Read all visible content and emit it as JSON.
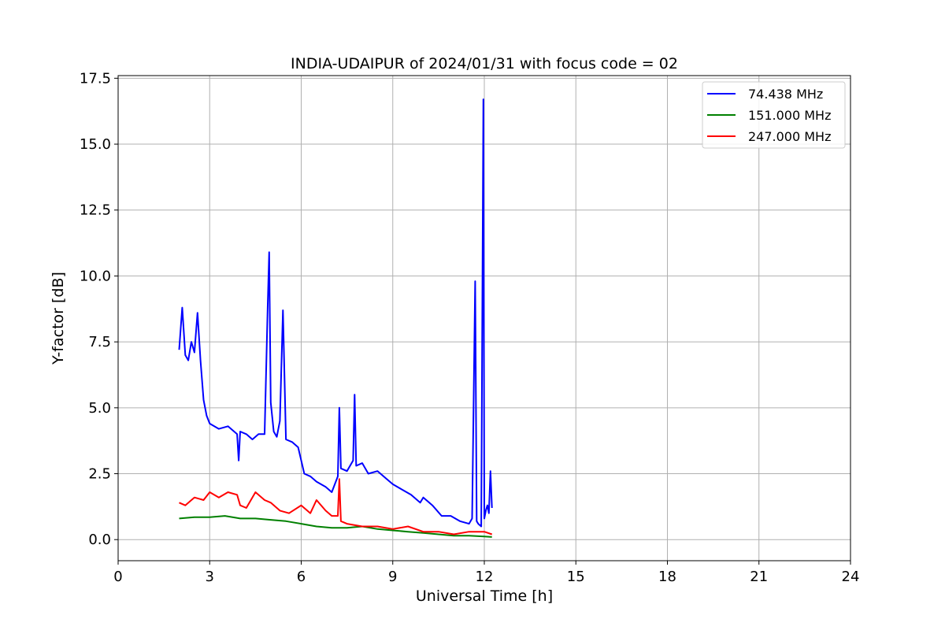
{
  "chart_data": {
    "type": "line",
    "title": "INDIA-UDAIPUR of 2024/01/31 with focus code = 02",
    "xlabel": "Universal Time [h]",
    "ylabel": "Y-factor [dB]",
    "xlim": [
      0,
      24
    ],
    "ylim": [
      -0.8,
      17.6
    ],
    "xticks": [
      0,
      3,
      6,
      9,
      12,
      15,
      18,
      21,
      24
    ],
    "yticks": [
      0.0,
      2.5,
      5.0,
      7.5,
      10.0,
      12.5,
      15.0,
      17.5
    ],
    "xtick_labels": [
      "0",
      "3",
      "6",
      "9",
      "12",
      "15",
      "18",
      "21",
      "24"
    ],
    "ytick_labels": [
      "0.0",
      "2.5",
      "5.0",
      "7.5",
      "10.0",
      "12.5",
      "15.0",
      "17.5"
    ],
    "grid": true,
    "legend_position": "top-right",
    "series": [
      {
        "name": " 74.438 MHz",
        "color": "#0000ff",
        "x": [
          2.0,
          2.1,
          2.2,
          2.3,
          2.4,
          2.5,
          2.6,
          2.7,
          2.8,
          2.9,
          3.0,
          3.3,
          3.6,
          3.9,
          3.95,
          4.0,
          4.2,
          4.4,
          4.6,
          4.8,
          4.9,
          4.95,
          5.0,
          5.1,
          5.2,
          5.3,
          5.4,
          5.5,
          5.7,
          5.9,
          6.1,
          6.3,
          6.5,
          6.8,
          7.0,
          7.2,
          7.25,
          7.3,
          7.5,
          7.7,
          7.75,
          7.8,
          8.0,
          8.2,
          8.5,
          8.8,
          9.0,
          9.3,
          9.6,
          9.9,
          10.0,
          10.3,
          10.6,
          10.9,
          11.2,
          11.5,
          11.6,
          11.7,
          11.75,
          11.8,
          11.9,
          11.97,
          12.0,
          12.05,
          12.1,
          12.15,
          12.2,
          12.25
        ],
        "y": [
          7.2,
          8.8,
          7.0,
          6.8,
          7.5,
          7.1,
          8.6,
          6.8,
          5.3,
          4.7,
          4.4,
          4.2,
          4.3,
          4.0,
          3.0,
          4.1,
          4.0,
          3.8,
          4.0,
          4.0,
          8.8,
          10.9,
          5.2,
          4.1,
          3.9,
          4.5,
          8.7,
          3.8,
          3.7,
          3.5,
          2.5,
          2.4,
          2.2,
          2.0,
          1.8,
          2.4,
          5.0,
          2.7,
          2.6,
          3.0,
          5.5,
          2.8,
          2.9,
          2.5,
          2.6,
          2.3,
          2.1,
          1.9,
          1.7,
          1.4,
          1.6,
          1.3,
          0.9,
          0.9,
          0.7,
          0.6,
          0.8,
          9.8,
          0.7,
          0.6,
          0.5,
          16.7,
          0.8,
          1.1,
          1.3,
          1.0,
          2.6,
          1.2
        ]
      },
      {
        "name": "151.000 MHz",
        "color": "#008000",
        "x": [
          2.0,
          2.5,
          3.0,
          3.5,
          4.0,
          4.5,
          5.0,
          5.5,
          6.0,
          6.5,
          7.0,
          7.5,
          8.0,
          8.5,
          9.0,
          9.5,
          10.0,
          10.5,
          11.0,
          11.5,
          12.0,
          12.25
        ],
        "y": [
          0.8,
          0.85,
          0.85,
          0.9,
          0.8,
          0.8,
          0.75,
          0.7,
          0.6,
          0.5,
          0.45,
          0.45,
          0.5,
          0.4,
          0.35,
          0.3,
          0.25,
          0.2,
          0.15,
          0.15,
          0.12,
          0.1
        ]
      },
      {
        "name": "247.000 MHz",
        "color": "#ff0000",
        "x": [
          2.0,
          2.2,
          2.5,
          2.8,
          3.0,
          3.3,
          3.6,
          3.9,
          4.0,
          4.2,
          4.5,
          4.8,
          5.0,
          5.3,
          5.6,
          6.0,
          6.3,
          6.5,
          6.8,
          7.0,
          7.2,
          7.25,
          7.3,
          7.5,
          8.0,
          8.5,
          9.0,
          9.5,
          10.0,
          10.5,
          11.0,
          11.5,
          12.0,
          12.25
        ],
        "y": [
          1.4,
          1.3,
          1.6,
          1.5,
          1.8,
          1.6,
          1.8,
          1.7,
          1.3,
          1.2,
          1.8,
          1.5,
          1.4,
          1.1,
          1.0,
          1.3,
          1.0,
          1.5,
          1.1,
          0.9,
          0.9,
          2.3,
          0.7,
          0.6,
          0.5,
          0.5,
          0.4,
          0.5,
          0.3,
          0.3,
          0.2,
          0.3,
          0.3,
          0.2
        ]
      }
    ]
  }
}
